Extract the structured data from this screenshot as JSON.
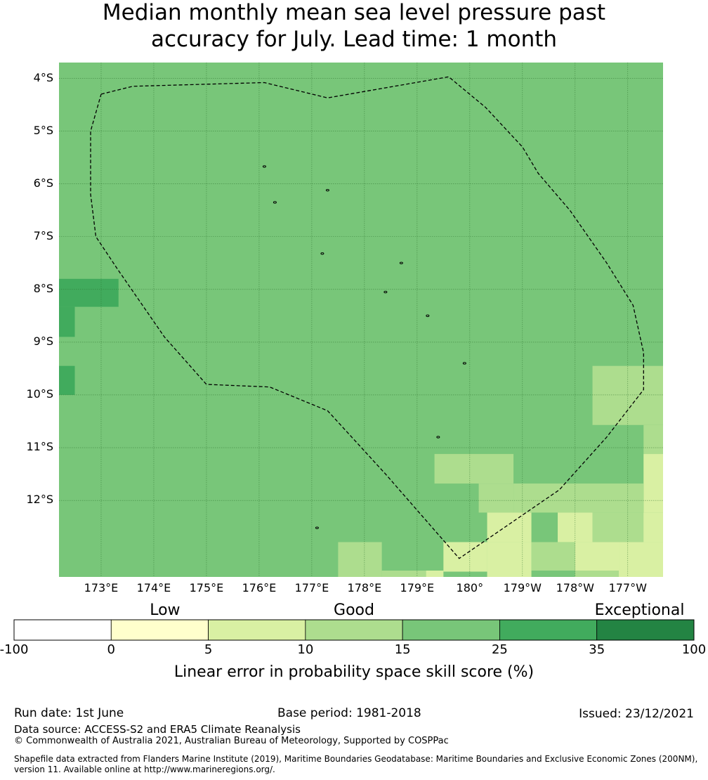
{
  "title": {
    "line1": "Median monthly mean sea level pressure past",
    "line2": "accuracy for July. Lead time: 1 month"
  },
  "map": {
    "lat_labels": [
      "4°S",
      "5°S",
      "6°S",
      "7°S",
      "8°S",
      "9°S",
      "10°S",
      "11°S",
      "12°S"
    ],
    "lat_values": [
      -4,
      -5,
      -6,
      -7,
      -8,
      -9,
      -10,
      -11,
      -12
    ],
    "lon_labels": [
      "173°E",
      "174°E",
      "175°E",
      "176°E",
      "177°E",
      "178°E",
      "179°E",
      "180°",
      "179°W",
      "178°W",
      "177°W"
    ],
    "lon_values": [
      173,
      174,
      175,
      176,
      177,
      178,
      179,
      180,
      181,
      182,
      183
    ],
    "extent": {
      "lon_min": 172.2,
      "lon_max": 183.67,
      "lat_max": -3.7,
      "lat_min": -13.45
    },
    "background_category_color": "#78c679",
    "cells": [
      {
        "lon0": 172.2,
        "lon1": 173.33,
        "lat0": -7.8,
        "lat1": -8.33,
        "color": "#41ab5d"
      },
      {
        "lon0": 172.2,
        "lon1": 172.5,
        "lat0": -8.33,
        "lat1": -8.9,
        "color": "#41ab5d"
      },
      {
        "lon0": 172.2,
        "lon1": 172.5,
        "lat0": -9.45,
        "lat1": -10.0,
        "color": "#41ab5d"
      },
      {
        "lon0": 182.33,
        "lon1": 183.67,
        "lat0": -9.45,
        "lat1": -10.57,
        "color": "#addd8e"
      },
      {
        "lon0": 183.3,
        "lon1": 183.67,
        "lat0": -10.57,
        "lat1": -11.12,
        "color": "#addd8e"
      },
      {
        "lon0": 179.33,
        "lon1": 180.83,
        "lat0": -11.12,
        "lat1": -11.68,
        "color": "#addd8e"
      },
      {
        "lon0": 183.3,
        "lon1": 183.67,
        "lat0": -11.12,
        "lat1": -12.23,
        "color": "#d9f0a3"
      },
      {
        "lon0": 180.17,
        "lon1": 180.83,
        "lat0": -11.68,
        "lat1": -12.23,
        "color": "#addd8e"
      },
      {
        "lon0": 180.83,
        "lon1": 183.3,
        "lat0": -11.68,
        "lat1": -12.23,
        "color": "#addd8e"
      },
      {
        "lon0": 181.67,
        "lon1": 182.33,
        "lat0": -12.23,
        "lat1": -12.79,
        "color": "#d9f0a3"
      },
      {
        "lon0": 182.33,
        "lon1": 183.67,
        "lat0": -12.23,
        "lat1": -12.79,
        "color": "#addd8e"
      },
      {
        "lon0": 177.5,
        "lon1": 178.33,
        "lat0": -12.79,
        "lat1": -13.45,
        "color": "#addd8e"
      },
      {
        "lon0": 179.5,
        "lon1": 180.33,
        "lat0": -12.79,
        "lat1": -13.35,
        "color": "#d9f0a3"
      },
      {
        "lon0": 180.33,
        "lon1": 181.17,
        "lat0": -12.23,
        "lat1": -12.79,
        "color": "#d9f0a3"
      },
      {
        "lon0": 180.33,
        "lon1": 181.17,
        "lat0": -12.79,
        "lat1": -13.45,
        "color": "#d9f0a3"
      },
      {
        "lon0": 181.17,
        "lon1": 182.0,
        "lat0": -12.79,
        "lat1": -13.33,
        "color": "#addd8e"
      },
      {
        "lon0": 182.0,
        "lon1": 182.83,
        "lat0": -12.79,
        "lat1": -13.45,
        "color": "#d9f0a3"
      },
      {
        "lon0": 182.83,
        "lon1": 183.67,
        "lat0": -12.79,
        "lat1": -13.45,
        "color": "#d9f0a3"
      },
      {
        "lon0": 178.33,
        "lon1": 179.17,
        "lat0": -13.33,
        "lat1": -13.45,
        "color": "#addd8e"
      },
      {
        "lon0": 179.17,
        "lon1": 179.5,
        "lat0": -13.33,
        "lat1": -13.45,
        "color": "#d9f0a3"
      },
      {
        "lon0": 182.0,
        "lon1": 182.83,
        "lat0": -13.33,
        "lat1": -13.45,
        "color": "#addd8e"
      },
      {
        "lon0": 183.3,
        "lon1": 183.67,
        "lat0": -12.23,
        "lat1": -12.79,
        "color": "#d9f0a3"
      }
    ],
    "boundary": [
      [
        173.0,
        -4.3
      ],
      [
        173.6,
        -4.15
      ],
      [
        176.1,
        -4.08
      ],
      [
        177.3,
        -4.37
      ],
      [
        179.6,
        -3.97
      ],
      [
        180.3,
        -4.55
      ],
      [
        181.0,
        -5.3
      ],
      [
        181.3,
        -5.8
      ],
      [
        181.9,
        -6.5
      ],
      [
        182.6,
        -7.5
      ],
      [
        183.1,
        -8.3
      ],
      [
        183.3,
        -9.2
      ],
      [
        183.3,
        -9.9
      ],
      [
        182.6,
        -10.8
      ],
      [
        181.7,
        -11.8
      ],
      [
        179.8,
        -13.1
      ],
      [
        178.4,
        -11.5
      ],
      [
        177.3,
        -10.3
      ],
      [
        176.2,
        -9.85
      ],
      [
        175.0,
        -9.8
      ],
      [
        174.2,
        -8.9
      ],
      [
        173.3,
        -7.6
      ],
      [
        172.9,
        -7.0
      ],
      [
        172.8,
        -6.2
      ],
      [
        172.8,
        -5.0
      ],
      [
        173.0,
        -4.3
      ]
    ],
    "islands": [
      [
        176.1,
        -5.67
      ],
      [
        176.3,
        -6.35
      ],
      [
        177.3,
        -6.12
      ],
      [
        177.2,
        -7.32
      ],
      [
        178.7,
        -7.5
      ],
      [
        178.4,
        -8.05
      ],
      [
        179.2,
        -8.5
      ],
      [
        179.9,
        -9.4
      ],
      [
        179.4,
        -10.8
      ],
      [
        177.1,
        -12.52
      ]
    ]
  },
  "colorbar": {
    "categories": [
      {
        "label": "Low",
        "position": 0.222
      },
      {
        "label": "Good",
        "position": 0.5
      },
      {
        "label": "Exceptional",
        "position": 0.92
      }
    ],
    "bins": [
      {
        "color": "#ffffff"
      },
      {
        "color": "#ffffcc"
      },
      {
        "color": "#d9f0a3"
      },
      {
        "color": "#addd8e"
      },
      {
        "color": "#78c679"
      },
      {
        "color": "#41ab5d"
      },
      {
        "color": "#238443"
      }
    ],
    "ticks": [
      "-100",
      "0",
      "5",
      "10",
      "15",
      "25",
      "35",
      "100"
    ],
    "title": "Linear error in probability space skill score (%)"
  },
  "footer": {
    "run_date": "Run date: 1st June",
    "base_period": "Base period: 1981-2018",
    "issued": "Issued: 23/12/2021",
    "data_source": "Data source: ACCESS-S2 and ERA5 Climate Reanalysis",
    "copyright": "© Commonwealth of Australia 2021, Australian Bureau of Meteorology, Supported by COSPPac",
    "shapefile_line1": "Shapefile data extracted from Flanders Marine Institute (2019), Maritime Boundaries Geodatabase: Maritime Boundaries and Exclusive Economic Zones (200NM),",
    "shapefile_line2": "version 11. Available online at http://www.marineregions.org/."
  }
}
